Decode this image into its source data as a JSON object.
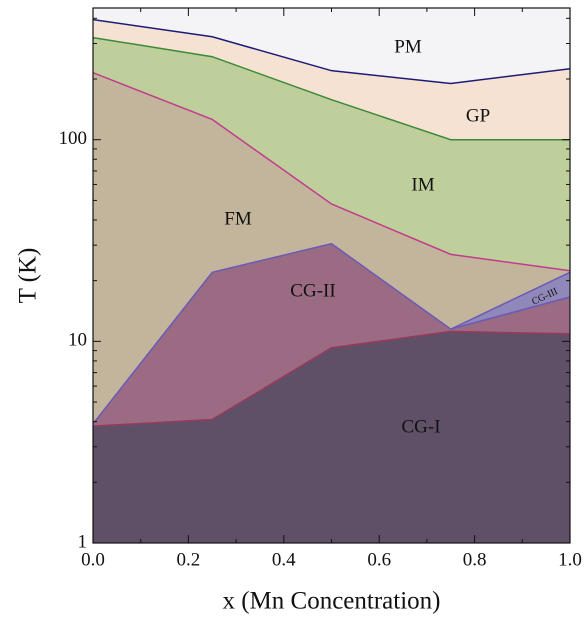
{
  "chart_data": {
    "type": "area",
    "xlabel": "x (Mn Concentration)",
    "ylabel": "T (K)",
    "x": [
      0,
      0.25,
      0.5,
      0.75,
      1
    ],
    "xlim": [
      0,
      1
    ],
    "xticks": [
      {
        "value": 0,
        "label": "0.0"
      },
      {
        "value": 0.2,
        "label": "0.2"
      },
      {
        "value": 0.4,
        "label": "0.4"
      },
      {
        "value": 0.6,
        "label": "0.6"
      },
      {
        "value": 0.8,
        "label": "0.8"
      },
      {
        "value": 1,
        "label": "1.0"
      }
    ],
    "xminorticks": [
      0.1,
      0.3,
      0.5,
      0.7,
      0.9
    ],
    "ylim": [
      1,
      450
    ],
    "log_y": true,
    "yticks": [
      1,
      10,
      100
    ],
    "yminorticks": [
      2,
      3,
      4,
      5,
      6,
      7,
      8,
      9,
      20,
      30,
      40,
      50,
      60,
      70,
      80,
      90,
      200,
      300,
      400
    ],
    "background_region": {
      "name": "PM",
      "color": "#f4f4f6"
    },
    "series": [
      {
        "name": "GP",
        "color": "#f6e2d2",
        "line_color": "#1c1c78",
        "values": [
          394,
          324,
          220,
          190,
          225
        ]
      },
      {
        "name": "IM",
        "color": "#bfcf9b",
        "line_color": "#3a8a3a",
        "values": [
          321,
          258,
          158,
          100,
          100
        ]
      },
      {
        "name": "FM",
        "color": "#c3b59b",
        "line_color": "#c23c8e",
        "values": [
          215,
          126,
          48,
          27,
          22.4
        ]
      },
      {
        "name": "CG-III",
        "color": "#8f88b8",
        "line_color": "#6a5ab8",
        "values": [
          null,
          null,
          null,
          11.5,
          22
        ]
      },
      {
        "name": "CG-II",
        "color": "#9b6b84",
        "line_color": "#6a5ab8",
        "values": [
          3.9,
          22,
          30.5,
          11.5,
          16.6
        ]
      },
      {
        "name": "CG-I",
        "color": "#5f5068",
        "line_color": "#9a3a5a",
        "values": [
          3.8,
          4.1,
          9.3,
          11.2,
          10.9
        ]
      }
    ]
  }
}
